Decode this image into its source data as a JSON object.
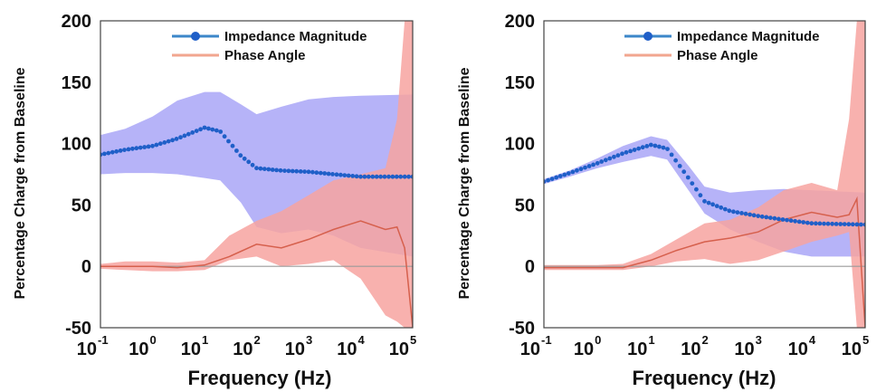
{
  "chart_data": [
    {
      "type": "line",
      "xlabel": "Frequency (Hz)",
      "ylabel": "Percentage Charge from Baseline",
      "x_scale": "log",
      "xlim": [
        0.1,
        100000
      ],
      "ylim": [
        -50,
        200
      ],
      "x_ticks": [
        {
          "base": "10",
          "exp": "-1"
        },
        {
          "base": "10",
          "exp": "0"
        },
        {
          "base": "10",
          "exp": "1"
        },
        {
          "base": "10",
          "exp": "2"
        },
        {
          "base": "10",
          "exp": "3"
        },
        {
          "base": "10",
          "exp": "4"
        },
        {
          "base": "10",
          "exp": "5"
        }
      ],
      "y_ticks": [
        "200",
        "150",
        "100",
        "50",
        "0",
        "-50"
      ],
      "legend": [
        "Impedance Magnitude",
        "Phase Angle"
      ],
      "legend_position": "top-right",
      "colors": {
        "magnitude": "#1f5fc8",
        "magnitude_band": "#a9a6f7",
        "phase": "#d6604d",
        "phase_band": "#f7a3a0",
        "baseline": "#9a9a9a"
      },
      "series": [
        {
          "name": "Impedance Magnitude",
          "style": "dots",
          "x": [
            0.1,
            0.3,
            1,
            3,
            10,
            20,
            50,
            100,
            300,
            1000,
            3000,
            10000,
            100000
          ],
          "y": [
            91,
            95,
            98,
            104,
            113,
            110,
            90,
            80,
            78,
            77,
            75,
            73,
            73
          ],
          "band_upper": [
            107,
            112,
            122,
            135,
            142,
            142,
            132,
            124,
            130,
            136,
            138,
            139,
            140
          ],
          "band_lower": [
            75,
            76,
            76,
            75,
            72,
            70,
            52,
            32,
            27,
            30,
            25,
            15,
            8
          ]
        },
        {
          "name": "Phase Angle",
          "style": "line",
          "x": [
            0.1,
            0.3,
            1,
            3,
            10,
            30,
            100,
            300,
            1000,
            3000,
            10000,
            30000,
            50000,
            70000,
            100000
          ],
          "y": [
            0,
            0,
            0,
            -1,
            1,
            8,
            18,
            15,
            22,
            30,
            37,
            30,
            32,
            15,
            -50
          ],
          "band_upper": [
            2,
            4,
            4,
            3,
            5,
            25,
            37,
            45,
            58,
            70,
            75,
            80,
            120,
            200,
            200
          ],
          "band_lower": [
            -2,
            -3,
            -4,
            -4,
            -3,
            5,
            8,
            0,
            2,
            5,
            -10,
            -40,
            -45,
            -50,
            -50
          ]
        }
      ]
    },
    {
      "type": "line",
      "xlabel": "Frequency (Hz)",
      "ylabel": "Percentage Charge from Baseline",
      "x_scale": "log",
      "xlim": [
        0.1,
        100000
      ],
      "ylim": [
        -50,
        200
      ],
      "x_ticks": [
        {
          "base": "10",
          "exp": "-1"
        },
        {
          "base": "10",
          "exp": "0"
        },
        {
          "base": "10",
          "exp": "1"
        },
        {
          "base": "10",
          "exp": "2"
        },
        {
          "base": "10",
          "exp": "3"
        },
        {
          "base": "10",
          "exp": "4"
        },
        {
          "base": "10",
          "exp": "5"
        }
      ],
      "y_ticks": [
        "200",
        "150",
        "100",
        "50",
        "0",
        "-50"
      ],
      "legend": [
        "Impedance Magnitude",
        "Phase Angle"
      ],
      "legend_position": "top-right",
      "colors": {
        "magnitude": "#1f5fc8",
        "magnitude_band": "#a9a6f7",
        "phase": "#d6604d",
        "phase_band": "#f7a3a0",
        "baseline": "#9a9a9a"
      },
      "series": [
        {
          "name": "Impedance Magnitude",
          "style": "dots",
          "x": [
            0.1,
            0.3,
            1,
            3,
            10,
            20,
            50,
            100,
            300,
            1000,
            3000,
            10000,
            100000
          ],
          "y": [
            69,
            76,
            84,
            92,
            99,
            96,
            72,
            53,
            45,
            41,
            38,
            35,
            34
          ],
          "band_upper": [
            71,
            78,
            88,
            98,
            106,
            103,
            82,
            65,
            60,
            62,
            63,
            62,
            60
          ],
          "band_lower": [
            67,
            73,
            80,
            85,
            90,
            87,
            62,
            43,
            30,
            20,
            12,
            8,
            8
          ]
        },
        {
          "name": "Phase Angle",
          "style": "line",
          "x": [
            0.1,
            0.3,
            1,
            3,
            10,
            30,
            100,
            300,
            1000,
            3000,
            10000,
            30000,
            50000,
            70000,
            100000
          ],
          "y": [
            -1,
            -1,
            -1,
            -1,
            5,
            13,
            20,
            23,
            28,
            38,
            44,
            40,
            42,
            55,
            -50
          ],
          "band_upper": [
            1,
            1,
            1,
            2,
            10,
            22,
            35,
            38,
            48,
            62,
            68,
            62,
            120,
            200,
            200
          ],
          "band_lower": [
            -3,
            -3,
            -3,
            -3,
            0,
            4,
            6,
            2,
            5,
            12,
            20,
            25,
            28,
            -50,
            -50
          ]
        }
      ]
    }
  ]
}
